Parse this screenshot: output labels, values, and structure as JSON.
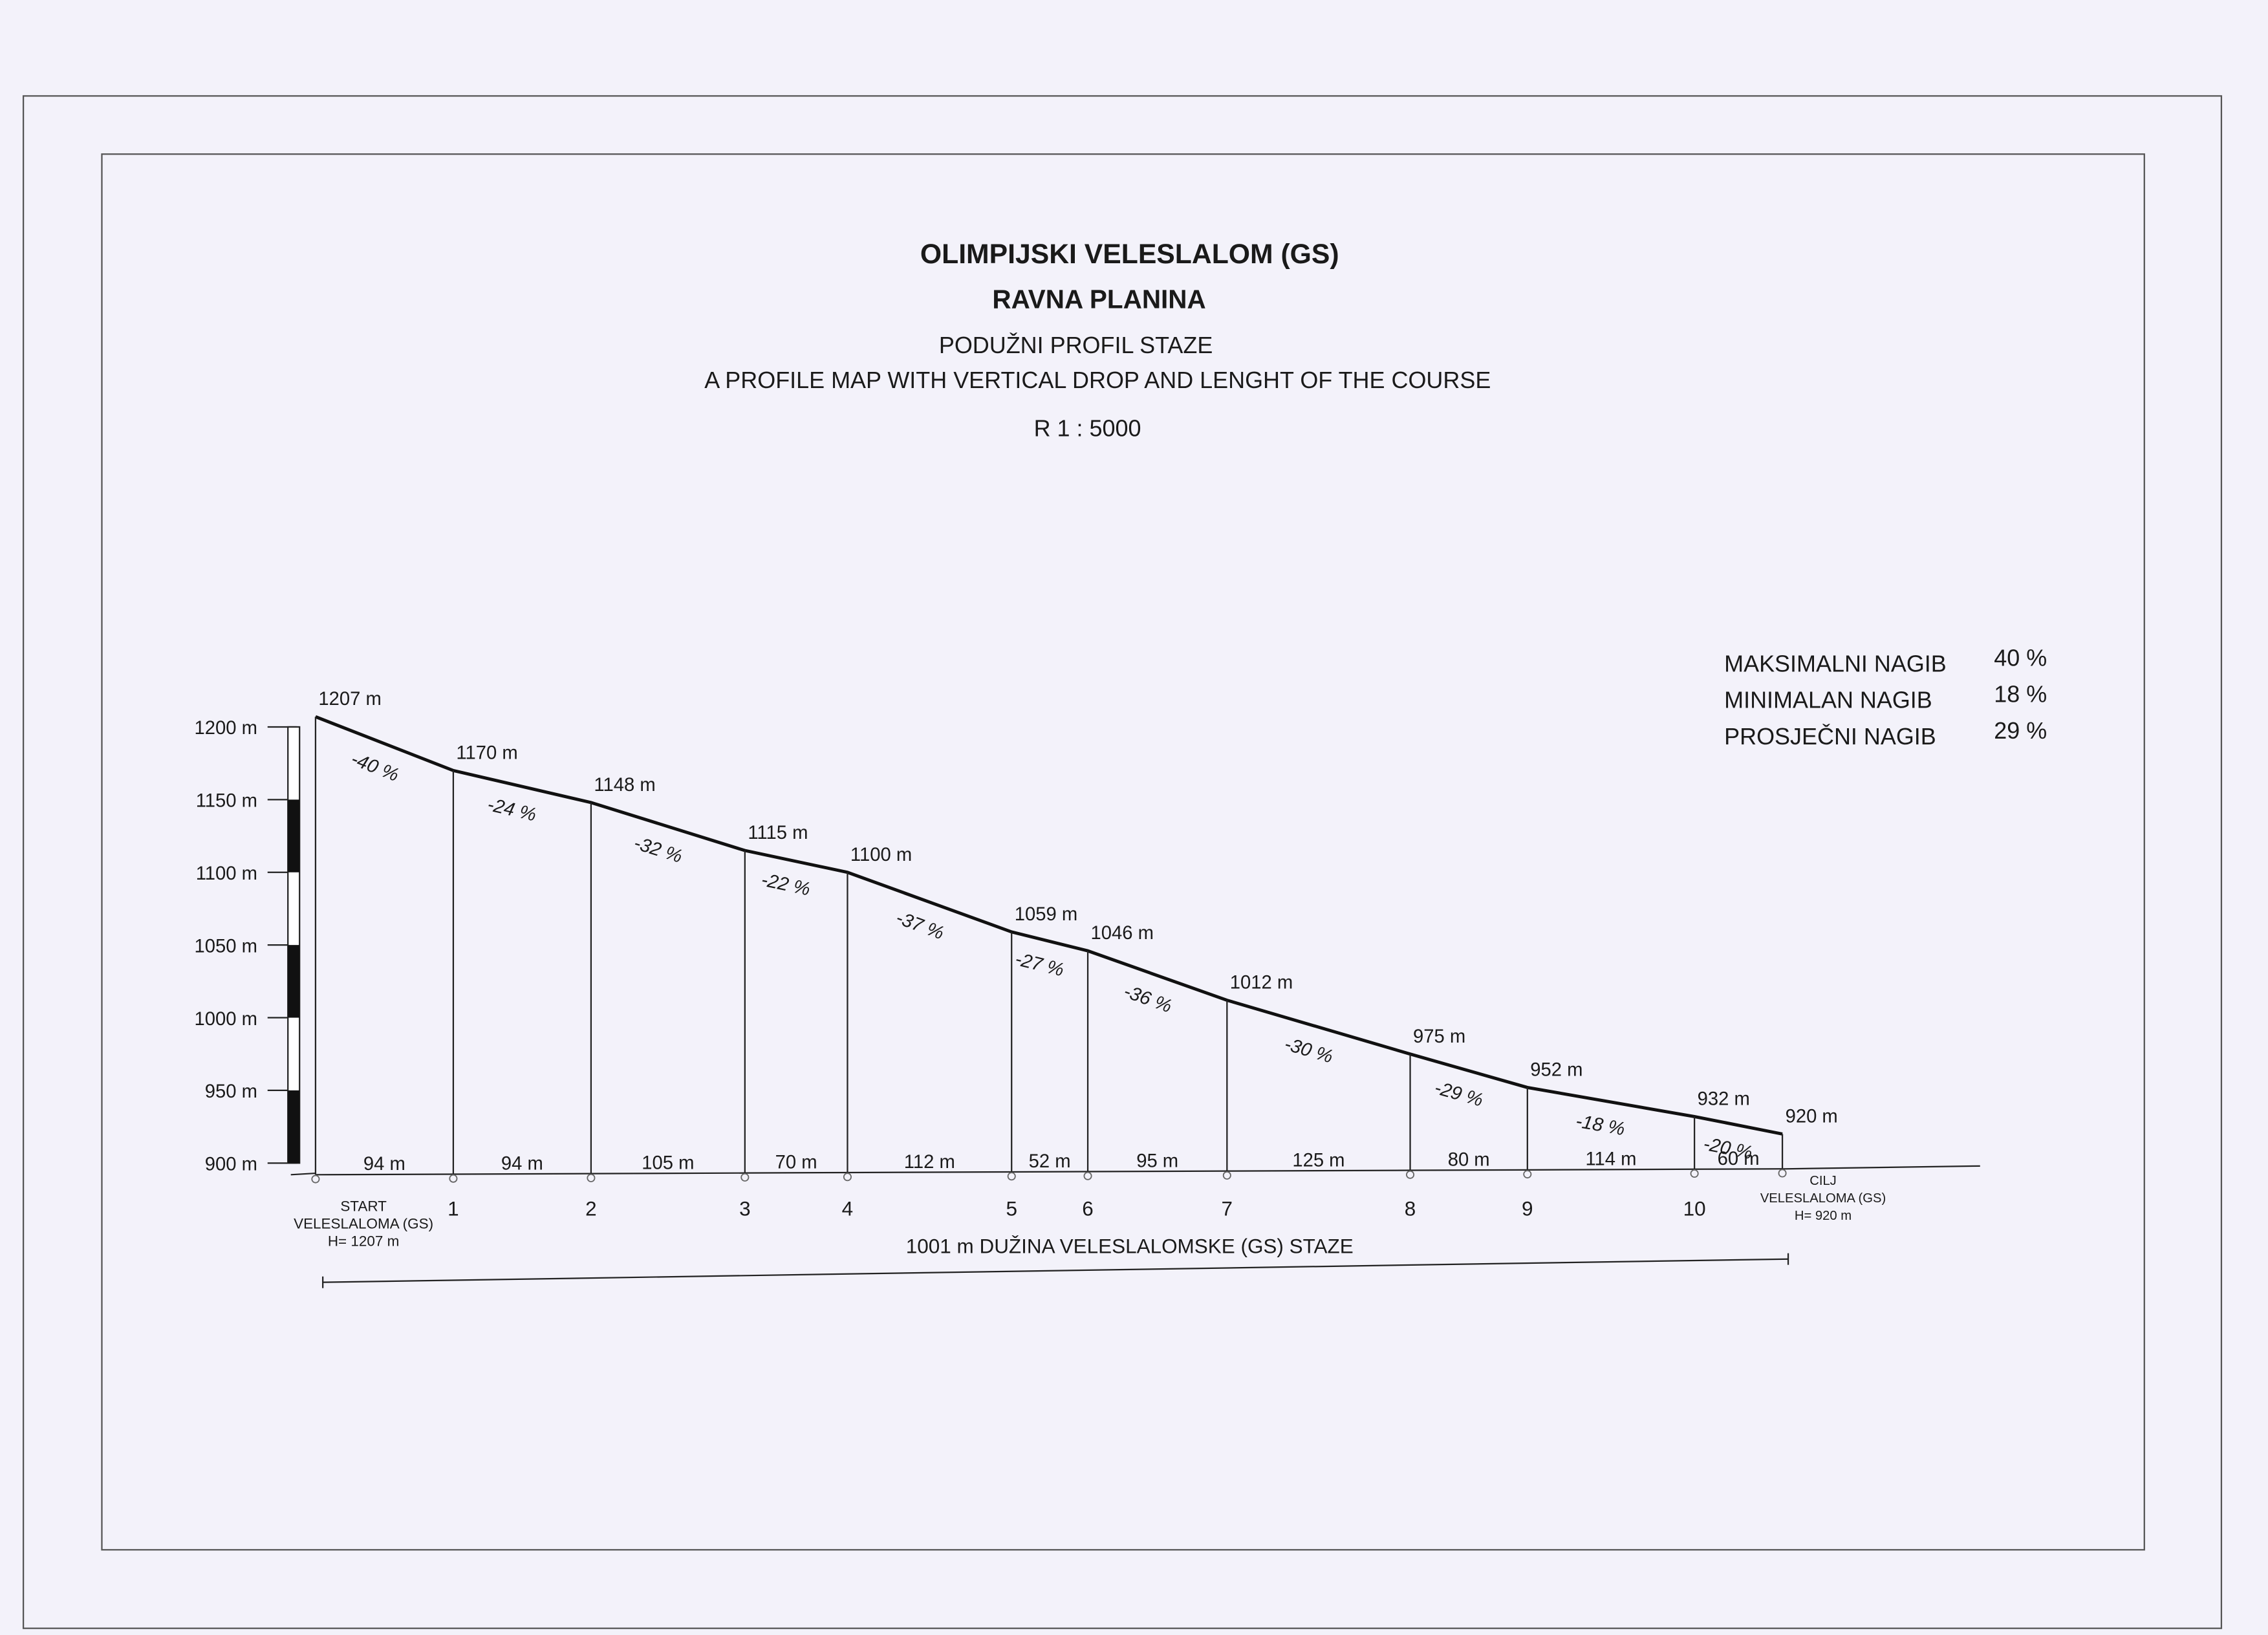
{
  "chart_data": {
    "type": "profile",
    "title": "OLIMPIJSKI VELESLALOM (GS)",
    "subtitle": "RAVNA PLANINA",
    "description": "PODUŽNI PROFIL STAZE",
    "description_en": "A PROFILE MAP WITH VERTICAL DROP AND LENGHT OF THE COURSE",
    "scale_note": "R 1 : 5000",
    "categories": [
      [
        "START",
        "VELESLALOMA (GS)",
        "H= 1207 m"
      ],
      "1",
      "2",
      "3",
      "4",
      "5",
      "6",
      "7",
      "8",
      "9",
      "10",
      [
        "CILJ",
        "VELESLALOMA (GS)",
        "H= 920 m"
      ]
    ],
    "values": [
      1207,
      1170,
      1148,
      1115,
      1100,
      1059,
      1046,
      1012,
      975,
      952,
      932,
      920
    ],
    "value_labels": [
      "1207 m",
      "1170 m",
      "1148 m",
      "1115 m",
      "1100 m",
      "1059 m",
      "1046 m",
      "1012 m",
      "975 m",
      "952 m",
      "932 m",
      "920 m"
    ],
    "segments": {
      "lengths": [
        94,
        94,
        105,
        70,
        112,
        52,
        95,
        125,
        80,
        114,
        60
      ],
      "length_labels": [
        "94 m",
        "94 m",
        "105 m",
        "70 m",
        "112 m",
        "52 m",
        "95 m",
        "125 m",
        "80 m",
        "114 m",
        "60 m"
      ],
      "slope_labels": [
        "-40 %",
        "-24 %",
        "-32 %",
        "-22 %",
        "-37 %",
        "-27 %",
        "-36 %",
        "-30 %",
        "-29 %",
        "-18 %",
        "-20 %"
      ]
    },
    "ylim": [
      900,
      1210
    ],
    "yticks": [
      {
        "value": 900,
        "label": "900 m"
      },
      {
        "value": 950,
        "label": "950 m"
      },
      {
        "value": 1000,
        "label": "1000 m"
      },
      {
        "value": 1050,
        "label": "1050 m"
      },
      {
        "value": 1100,
        "label": "1100 m"
      },
      {
        "value": 1150,
        "label": "1150 m"
      },
      {
        "value": 1200,
        "label": "1200 m"
      }
    ],
    "total_length_label": "1001 m  DUŽINA VELESLALOMSKE (GS) STAZE",
    "stats": [
      [
        "MAKSIMALNI NAGIB",
        "40 %"
      ],
      [
        "MINIMALAN NAGIB",
        "18 %"
      ],
      [
        "PROSJEČNI NAGIB",
        "29 %"
      ]
    ]
  }
}
